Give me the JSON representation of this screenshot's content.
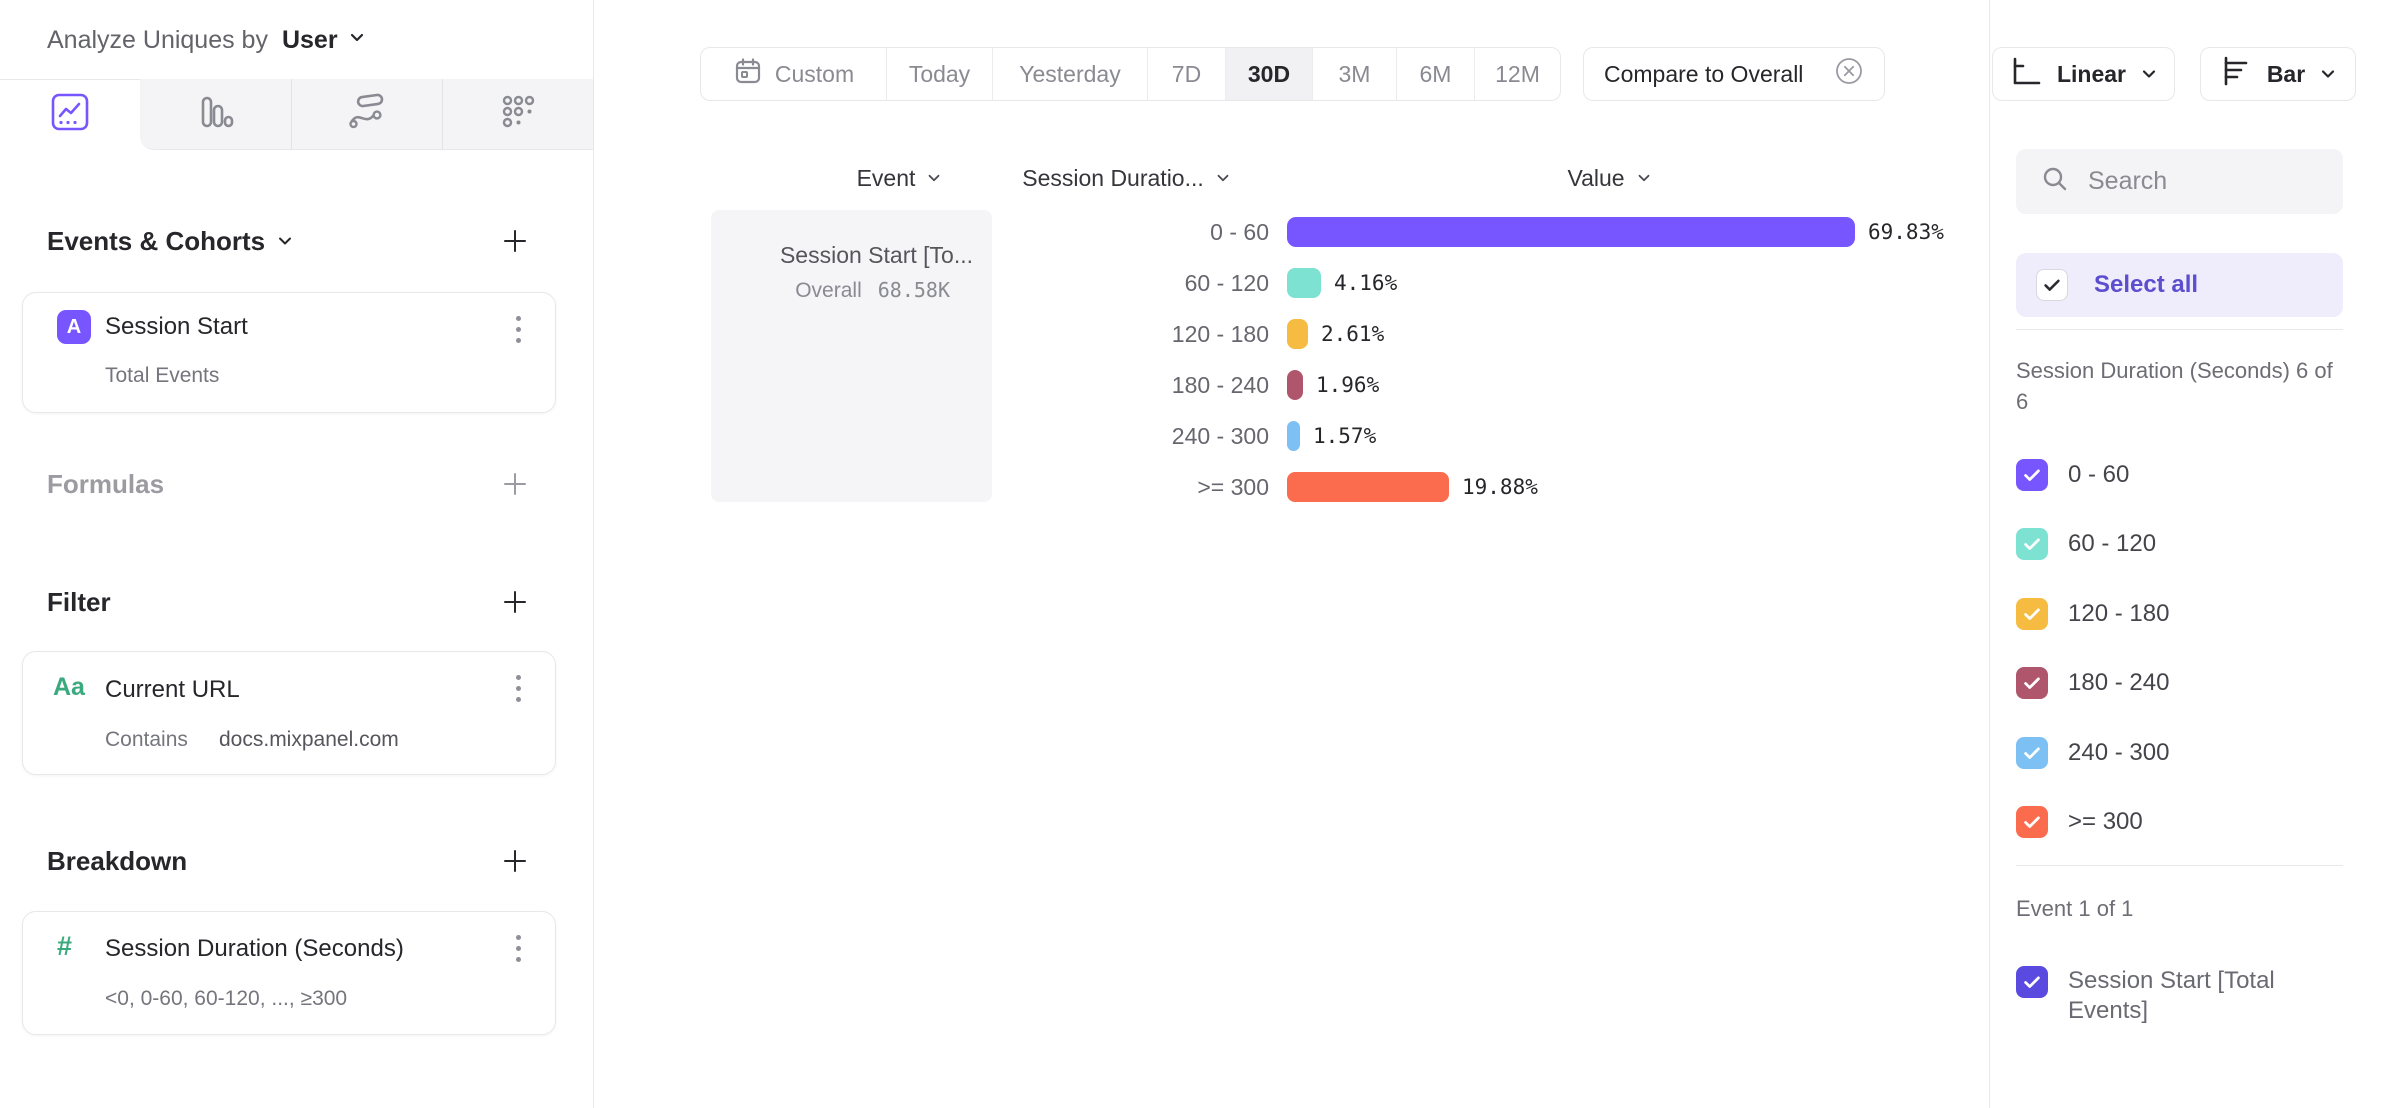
{
  "header": {
    "analyze_label": "Analyze Uniques by",
    "analyze_value": "User"
  },
  "left_panel": {
    "tabs": [
      "insights",
      "bar-chart",
      "flows",
      "retention"
    ],
    "active_tab": "insights",
    "events_cohorts": {
      "title": "Events & Cohorts",
      "card": {
        "badge": "A",
        "title": "Session Start",
        "subtitle": "Total Events"
      }
    },
    "formulas": {
      "title": "Formulas"
    },
    "filter": {
      "title": "Filter",
      "card": {
        "badge": "Aa",
        "title": "Current URL",
        "operator": "Contains",
        "value": "docs.mixpanel.com"
      }
    },
    "breakdown": {
      "title": "Breakdown",
      "card": {
        "badge": "#",
        "title": "Session Duration (Seconds)",
        "subtitle": "<0, 0-60, 60-120, ..., ≥300"
      }
    }
  },
  "toolbar": {
    "date_ranges": [
      "Custom",
      "Today",
      "Yesterday",
      "7D",
      "30D",
      "3M",
      "6M",
      "12M"
    ],
    "active_range": "30D",
    "compare_label": "Compare to Overall",
    "linear_label": "Linear",
    "bar_label": "Bar"
  },
  "chart": {
    "columns": {
      "event": "Event",
      "breakdown": "Session Duratio...",
      "value": "Value"
    },
    "event_card": {
      "title": "Session Start [To...",
      "overall_label": "Overall",
      "overall_value": "68.58K"
    }
  },
  "chart_data": {
    "type": "bar",
    "orientation": "horizontal",
    "categories": [
      "0 - 60",
      "60 - 120",
      "120 - 180",
      "180 - 240",
      "240 - 300",
      ">= 300"
    ],
    "values": [
      69.83,
      4.16,
      2.61,
      1.96,
      1.57,
      19.88
    ],
    "value_labels": [
      "69.83%",
      "4.16%",
      "2.61%",
      "1.96%",
      "1.57%",
      "19.88%"
    ],
    "colors": [
      "#7856FF",
      "#7EE2D2",
      "#F6BC42",
      "#B0566C",
      "#7CC0F4",
      "#FB6C4F"
    ],
    "series_name": "Session Start [Total Events]",
    "value_suffix": "%",
    "grid": false,
    "legend_position": "right-sidebar"
  },
  "sidebar": {
    "search_placeholder": "Search",
    "select_all_label": "Select all",
    "group_label": "Session Duration (Seconds) 6 of 6",
    "items": [
      {
        "label": "0 - 60",
        "color": "#7856FF"
      },
      {
        "label": "60 - 120",
        "color": "#7EE2D2"
      },
      {
        "label": "120 - 180",
        "color": "#F6BC42"
      },
      {
        "label": "180 - 240",
        "color": "#B0566C"
      },
      {
        "label": "240 - 300",
        "color": "#7CC0F4"
      },
      {
        "label": ">= 300",
        "color": "#FB6C4F"
      }
    ],
    "event_group_label": "Event 1 of 1",
    "event_item": {
      "label": "Session Start [Total Events]",
      "color": "#5B4AE0"
    }
  },
  "colors": {
    "accent": "#7856FF",
    "select_all_bg": "#EFEDFC",
    "select_all_text": "#5C4ECF"
  }
}
